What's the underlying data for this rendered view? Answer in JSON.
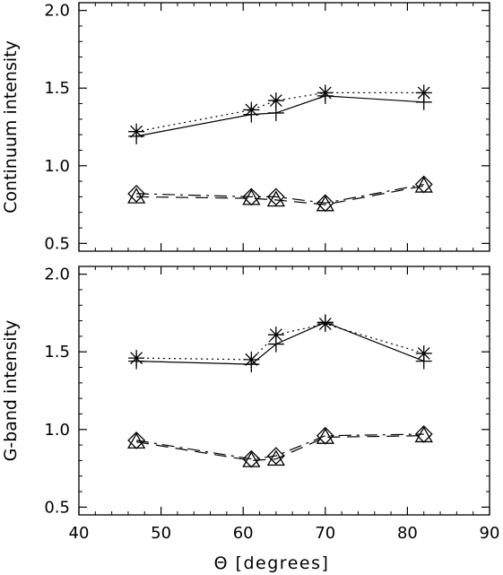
{
  "chart_data": [
    {
      "type": "line",
      "xlabel": "",
      "ylabel": "Continuum intensity",
      "xlim": [
        40,
        90
      ],
      "ylim": [
        0.45,
        2.05
      ],
      "x_ticks": [
        "40",
        "50",
        "60",
        "70",
        "80",
        "90"
      ],
      "y_ticks": [
        "0.5",
        "1.0",
        "1.5",
        "2.0"
      ],
      "x_tick_labels_shown": false,
      "grid": false,
      "legend": "none",
      "series": [
        {
          "marker": "plus",
          "line": "solid",
          "x": [
            47,
            61,
            64,
            70,
            82
          ],
          "y": [
            1.19,
            1.33,
            1.34,
            1.45,
            1.41
          ]
        },
        {
          "marker": "asterisk",
          "line": "dotted",
          "x": [
            47,
            61,
            64,
            70,
            82
          ],
          "y": [
            1.22,
            1.36,
            1.42,
            1.47,
            1.47
          ]
        },
        {
          "marker": "triangle",
          "line": "dashed",
          "x": [
            47,
            61,
            64,
            70,
            82
          ],
          "y": [
            0.8,
            0.79,
            0.78,
            0.75,
            0.87
          ]
        },
        {
          "marker": "diamond",
          "line": "dash-dot",
          "x": [
            47,
            61,
            64,
            70,
            82
          ],
          "y": [
            0.82,
            0.8,
            0.8,
            0.76,
            0.88
          ]
        }
      ]
    },
    {
      "type": "line",
      "xlabel": "Θ [degrees]",
      "ylabel": "G-band intensity",
      "xlim": [
        40,
        90
      ],
      "ylim": [
        0.45,
        2.05
      ],
      "x_ticks": [
        "40",
        "50",
        "60",
        "70",
        "80",
        "90"
      ],
      "y_ticks": [
        "0.5",
        "1.0",
        "1.5",
        "2.0"
      ],
      "x_tick_labels_shown": true,
      "grid": false,
      "legend": "none",
      "series": [
        {
          "marker": "plus",
          "line": "solid",
          "x": [
            47,
            61,
            64,
            70,
            82
          ],
          "y": [
            1.44,
            1.42,
            1.55,
            1.69,
            1.44
          ]
        },
        {
          "marker": "asterisk",
          "line": "dotted",
          "x": [
            47,
            61,
            64,
            70,
            82
          ],
          "y": [
            1.46,
            1.45,
            1.61,
            1.68,
            1.49
          ]
        },
        {
          "marker": "triangle",
          "line": "dashed",
          "x": [
            47,
            61,
            64,
            70,
            82
          ],
          "y": [
            0.92,
            0.8,
            0.81,
            0.95,
            0.96
          ]
        },
        {
          "marker": "diamond",
          "line": "dash-dot",
          "x": [
            47,
            61,
            64,
            70,
            82
          ],
          "y": [
            0.93,
            0.81,
            0.83,
            0.96,
            0.97
          ]
        }
      ]
    }
  ]
}
